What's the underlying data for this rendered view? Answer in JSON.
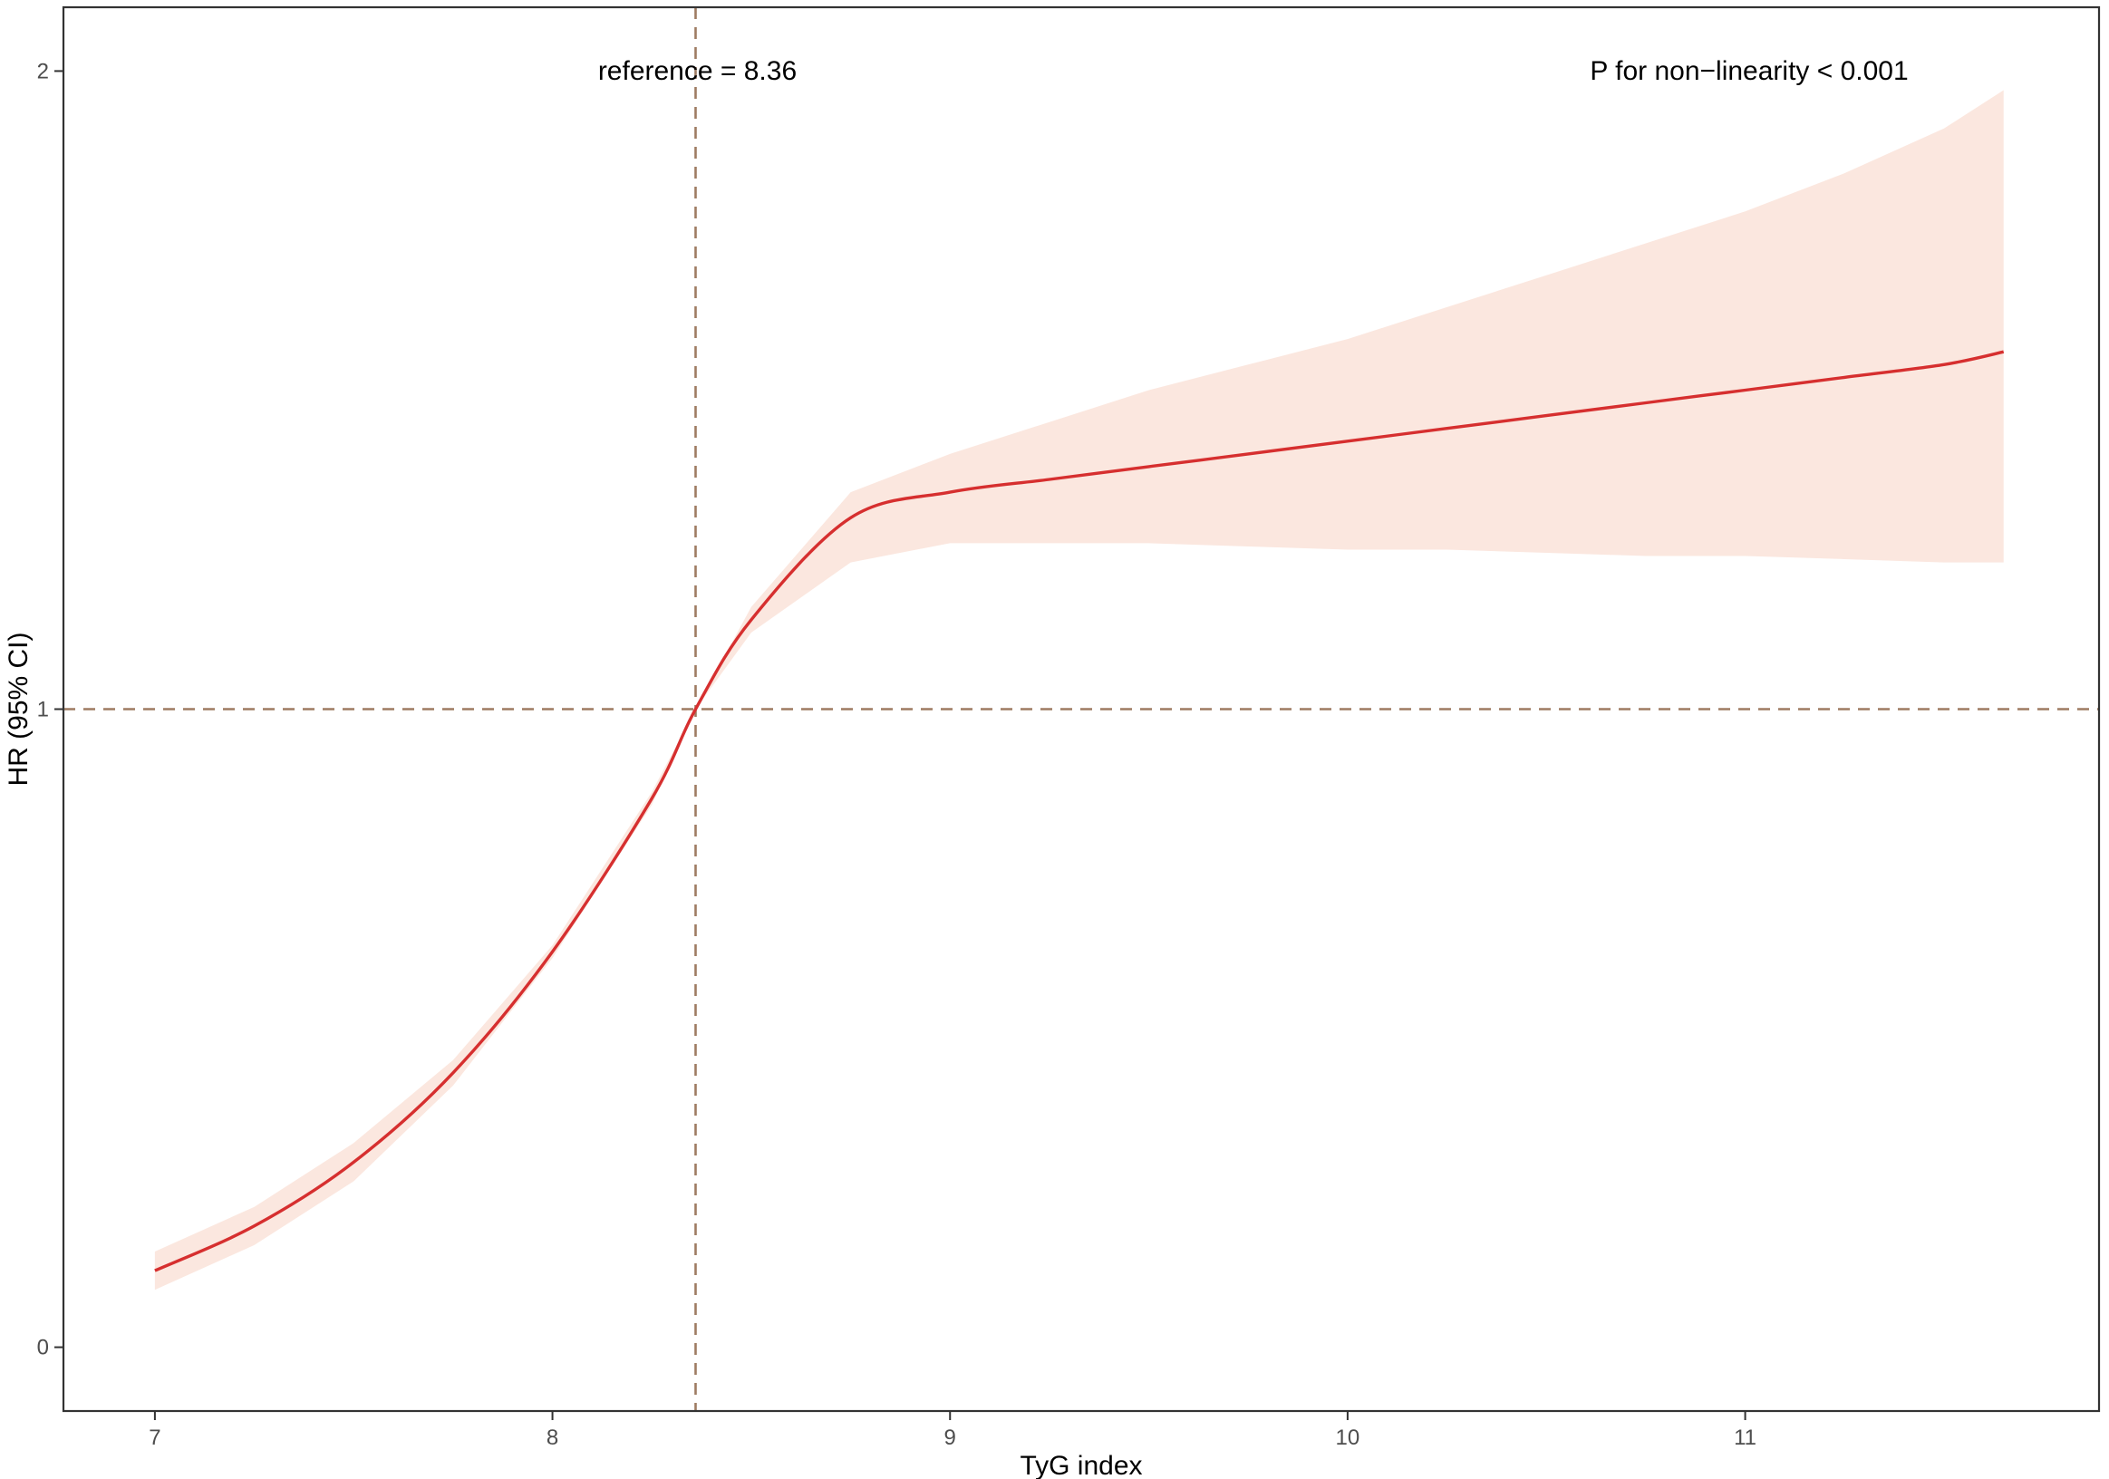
{
  "chart_data": {
    "type": "line",
    "xlabel": "TyG index",
    "ylabel": "HR (95% CI)",
    "xlim": [
      6.77,
      11.89
    ],
    "ylim": [
      -0.1,
      2.1
    ],
    "x_ticks": [
      7,
      8,
      9,
      10,
      11
    ],
    "y_ticks": [
      0,
      1,
      2
    ],
    "grid": false,
    "reference_x": 8.36,
    "reference_y": 1,
    "annotations": {
      "reference": "reference = 8.36",
      "p_value": "P for non−linearity < 0.001"
    },
    "series": [
      {
        "x": [
          7.0,
          7.25,
          7.5,
          7.75,
          8.0,
          8.25,
          8.36,
          8.5,
          8.75,
          9.0,
          9.25,
          9.5,
          9.75,
          10.0,
          10.25,
          10.5,
          10.75,
          11.0,
          11.25,
          11.5,
          11.65
        ],
        "y": [
          0.12,
          0.19,
          0.29,
          0.43,
          0.62,
          0.86,
          1.0,
          1.14,
          1.3,
          1.34,
          1.36,
          1.38,
          1.4,
          1.42,
          1.44,
          1.46,
          1.48,
          1.5,
          1.52,
          1.54,
          1.56
        ],
        "ci_lower": [
          0.09,
          0.16,
          0.26,
          0.41,
          0.61,
          0.85,
          1.0,
          1.12,
          1.23,
          1.26,
          1.26,
          1.26,
          1.255,
          1.25,
          1.25,
          1.245,
          1.24,
          1.24,
          1.235,
          1.23,
          1.23
        ],
        "ci_upper": [
          0.15,
          0.22,
          0.32,
          0.45,
          0.63,
          0.87,
          1.0,
          1.16,
          1.34,
          1.4,
          1.45,
          1.5,
          1.54,
          1.58,
          1.63,
          1.68,
          1.73,
          1.78,
          1.84,
          1.91,
          1.97
        ]
      }
    ],
    "colors": {
      "line": "#d62f2f",
      "ribbon": "#fbe7df",
      "reference_line": "#9e7b62",
      "axis": "#333333",
      "tick_label": "#4d4d4d"
    }
  }
}
